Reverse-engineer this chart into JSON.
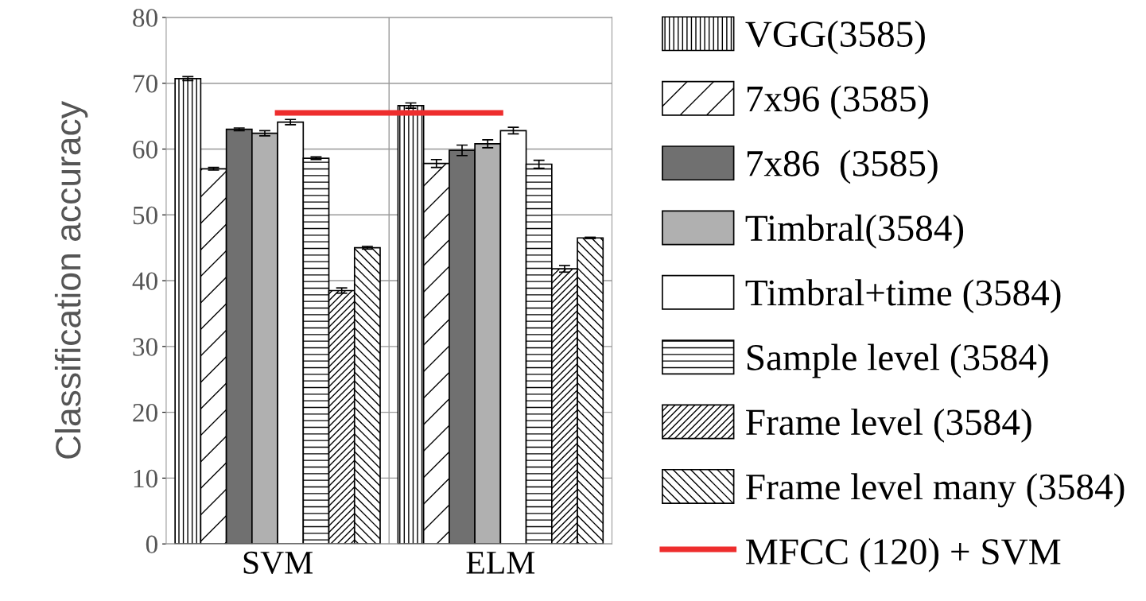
{
  "chart_data": {
    "type": "bar",
    "ylabel": "Classification accuracy",
    "categories": [
      "SVM",
      "ELM"
    ],
    "series": [
      {
        "name": "VGG(3585)",
        "color": "#000000",
        "values": [
          70.7,
          66.6
        ],
        "errors": [
          0.3,
          0.4
        ]
      },
      {
        "name": "7x96 (3585)",
        "color": "#000000",
        "values": [
          57.0,
          57.8
        ],
        "errors": [
          0.2,
          0.6
        ]
      },
      {
        "name": "7x86  (3585)",
        "color": "#707070",
        "values": [
          63.0,
          59.8
        ],
        "errors": [
          0.2,
          0.8
        ]
      },
      {
        "name": "Timbral(3584)",
        "color": "#b0b0b0",
        "values": [
          62.4,
          60.8
        ],
        "errors": [
          0.4,
          0.6
        ]
      },
      {
        "name": "Timbral+time (3584)",
        "color": "#ffffff",
        "values": [
          64.1,
          62.8
        ],
        "errors": [
          0.4,
          0.5
        ]
      },
      {
        "name": "Sample level (3584)",
        "color": "#000000",
        "values": [
          58.6,
          57.7
        ],
        "errors": [
          0.2,
          0.6
        ]
      },
      {
        "name": "Frame level (3584)",
        "color": "#000000",
        "values": [
          38.5,
          41.8
        ],
        "errors": [
          0.4,
          0.5
        ]
      },
      {
        "name": "Frame level many (3584)",
        "color": "#000000",
        "values": [
          45.0,
          46.5
        ],
        "errors": [
          0.2,
          0.1
        ]
      },
      {
        "name": "MFCC (120) + SVM",
        "type": "line",
        "color": "#ee2d2d",
        "values": [
          65.5,
          65.5
        ]
      }
    ],
    "ylim": [
      0,
      80
    ],
    "yticks": [
      0,
      10,
      20,
      30,
      40,
      50,
      60,
      70,
      80
    ],
    "grid": "y",
    "legend": "right"
  }
}
